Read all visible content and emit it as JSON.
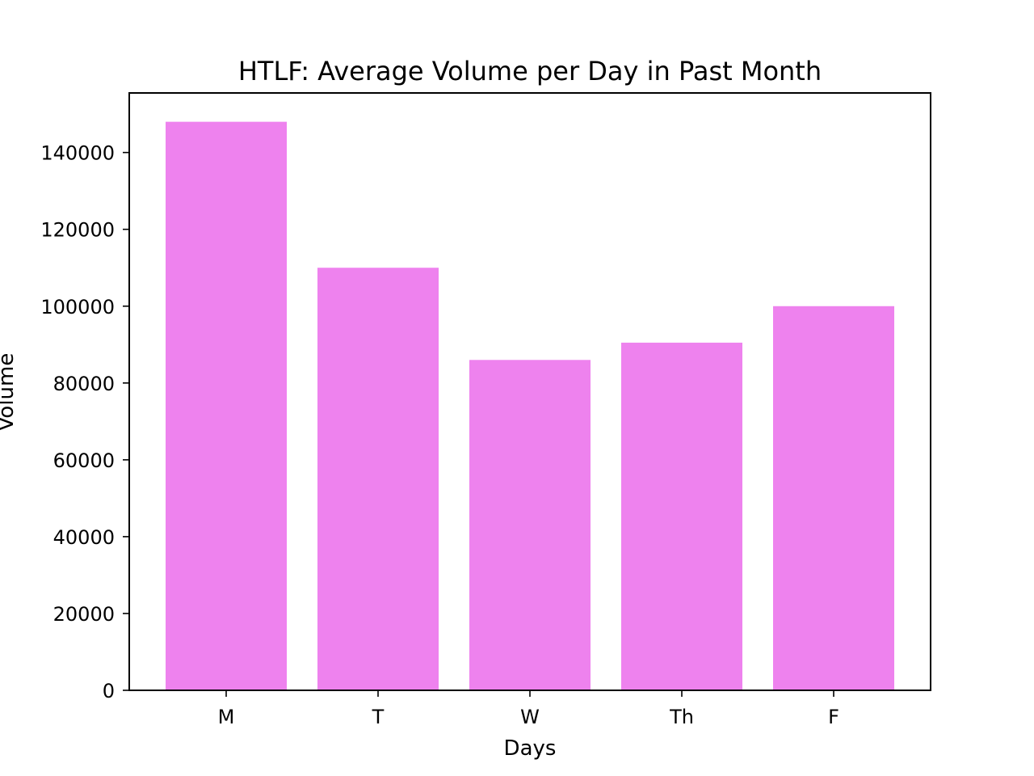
{
  "chart_data": {
    "type": "bar",
    "title": "HTLF: Average Volume per Day in Past Month",
    "xlabel": "Days",
    "ylabel": "Volume",
    "categories": [
      "M",
      "T",
      "W",
      "Th",
      "F"
    ],
    "values": [
      148000,
      110000,
      86000,
      90500,
      100000
    ],
    "ylim": [
      0,
      155500
    ],
    "yticks": [
      0,
      20000,
      40000,
      60000,
      80000,
      100000,
      120000,
      140000
    ],
    "ytick_labels": [
      "0",
      "20000",
      "40000",
      "60000",
      "80000",
      "100000",
      "120000",
      "140000"
    ],
    "bar_color": "#ee82ee",
    "grid": false,
    "legend": false
  }
}
